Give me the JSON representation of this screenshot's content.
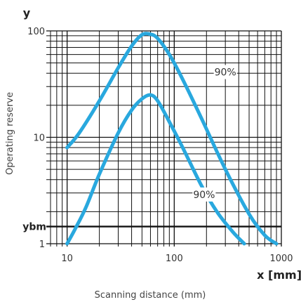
{
  "chart_data": {
    "type": "line",
    "y_axis_letter": "y",
    "x_axis_title": "x [mm]",
    "ylabel": "Operating reserve",
    "xlabel": "Scanning distance (mm)",
    "x_scale": "log",
    "y_scale": "log",
    "xlim": [
      7,
      1000
    ],
    "ylim": [
      1,
      100
    ],
    "grid": true,
    "x_ticks": [
      {
        "value": 10,
        "label": "10"
      },
      {
        "value": 100,
        "label": "100"
      },
      {
        "value": 1000,
        "label": "1000"
      }
    ],
    "y_ticks": [
      {
        "value": 1,
        "label": "1"
      },
      {
        "value": 10,
        "label": "10"
      },
      {
        "value": 100,
        "label": "100"
      }
    ],
    "reference_lines": [
      {
        "label": "ybm",
        "y": 1.45
      }
    ],
    "annotations": [
      {
        "text": "90%",
        "x": 300,
        "y": 41
      },
      {
        "text": "90%",
        "x": 190,
        "y": 2.9
      }
    ],
    "series": [
      {
        "color": "#29a8de",
        "x": [
          10,
          13,
          20,
          30,
          40,
          50,
          60,
          70,
          90,
          120,
          180,
          300,
          500,
          700,
          900
        ],
        "y": [
          8,
          11,
          22,
          45,
          72,
          92,
          93,
          85,
          60,
          35,
          15,
          5,
          1.9,
          1.2,
          1
        ]
      },
      {
        "color": "#29a8de",
        "x": [
          10,
          12,
          15,
          20,
          30,
          40,
          50,
          60,
          70,
          90,
          120,
          180,
          250,
          350,
          450
        ],
        "y": [
          1,
          1.4,
          2.2,
          4.5,
          11,
          18,
          23,
          25,
          22,
          14,
          8,
          3.5,
          2,
          1.3,
          1
        ]
      }
    ]
  }
}
